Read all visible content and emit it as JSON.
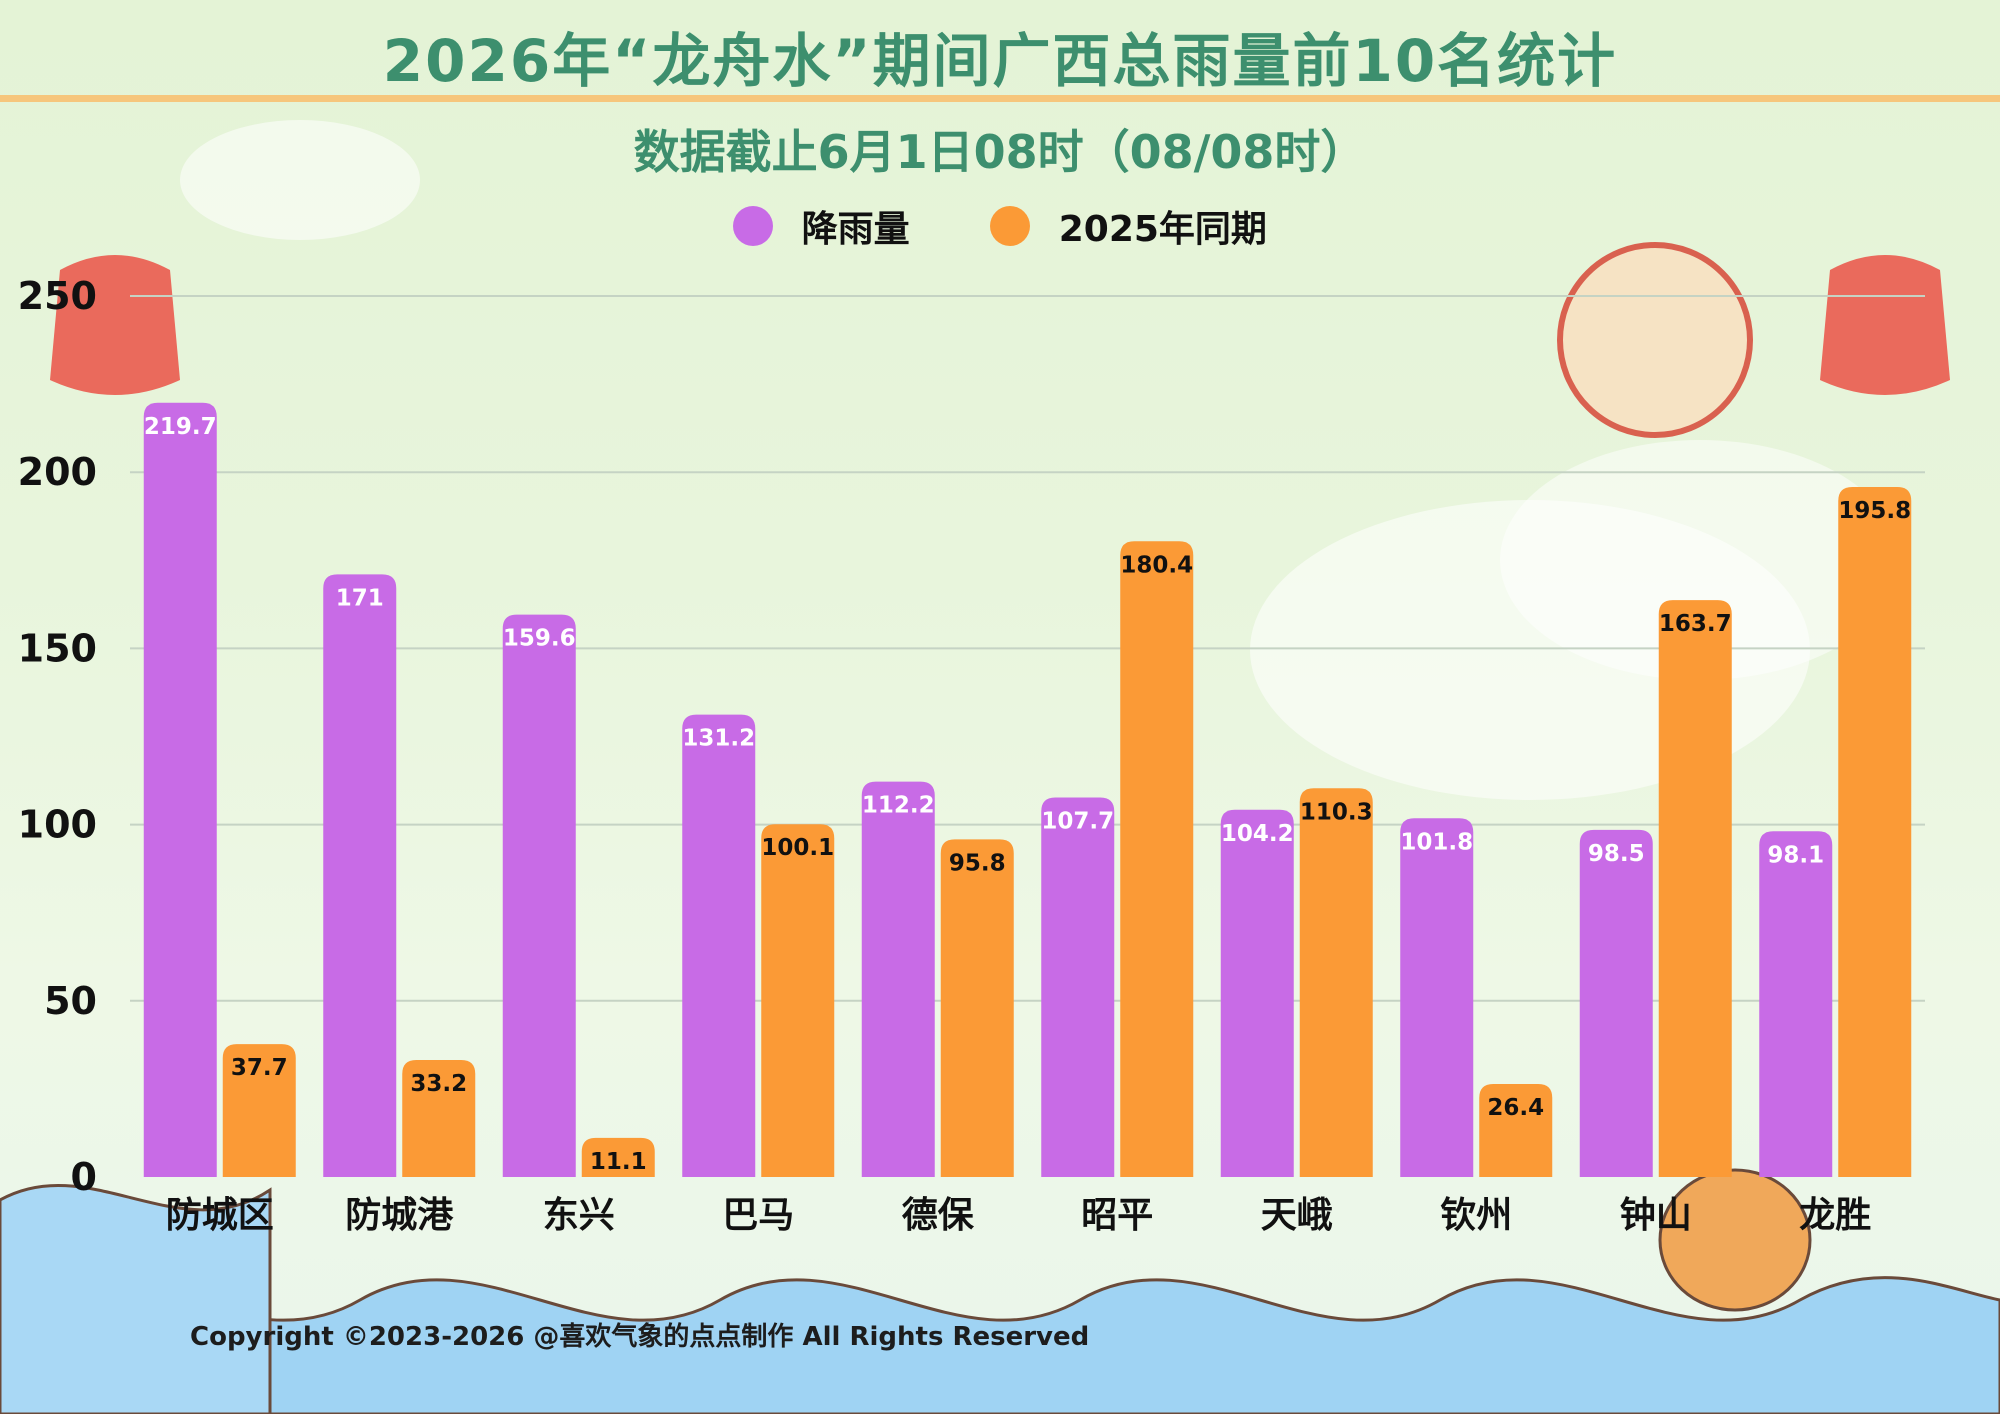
{
  "title": "2026年“龙舟水”期间广西总雨量前10名统计",
  "subtitle": "数据截止6月1日08时（08/08时）",
  "copyright": "Copyright ©2023-2026 @喜欢气象的点点制作 All Rights Reserved",
  "colors": {
    "rain": "#c86be6",
    "last_year": "#fb9a36",
    "title": "#3d8f6e",
    "accent_rule": "#f6c67c"
  },
  "chart_data": {
    "type": "bar",
    "categories": [
      "防城区",
      "防城港",
      "东兴",
      "巴马",
      "德保",
      "昭平",
      "天峨",
      "钦州",
      "钟山",
      "龙胜"
    ],
    "series": [
      {
        "name": "降雨量",
        "values": [
          219.7,
          171,
          159.6,
          131.2,
          112.2,
          107.7,
          104.2,
          101.8,
          98.5,
          98.1
        ]
      },
      {
        "name": "2025年同期",
        "values": [
          37.7,
          33.2,
          11.1,
          100.1,
          95.8,
          180.4,
          110.3,
          26.4,
          163.7,
          195.8
        ]
      }
    ],
    "y_ticks": [
      0,
      50,
      100,
      150,
      200,
      250
    ],
    "ylim": [
      0,
      250
    ],
    "grid": true,
    "legend": "top-center",
    "data_labels": true
  }
}
